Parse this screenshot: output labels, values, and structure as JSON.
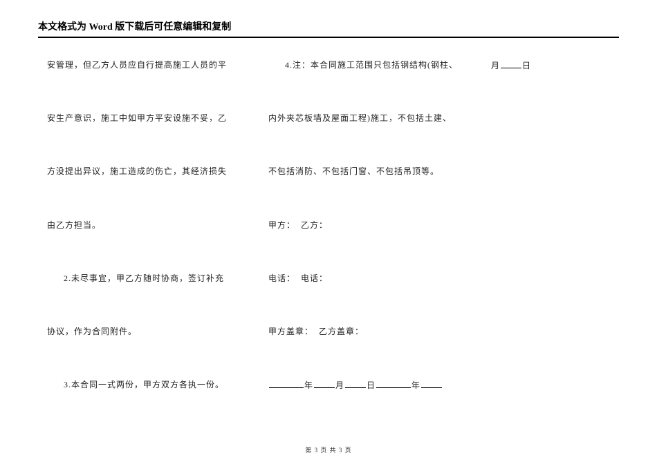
{
  "header": "本文格式为 Word 版下载后可任意编辑和复制",
  "col1": {
    "p1": "安管理，但乙方人员应自行提高施工人员的平",
    "p2": "安生产意识，施工中如甲方平安设施不妥，乙",
    "p3": "方没提出异议，施工造成的伤亡，其经济损失",
    "p4": "由乙方担当。",
    "p5": "2.未尽事宜，甲乙方随时协商，签订补充",
    "p6": "协议，作为合同附件。",
    "p7": "3.本合同一式两份，甲方双方各执一份。"
  },
  "col2": {
    "p1": "4.注：本合同施工范围只包括钢结构(钢柱、",
    "p2": "内外夹芯板墙及屋面工程)施工，不包括土建、",
    "p3": "不包括消防、不包括门窗、不包括吊顶等。",
    "p4a": "甲方：",
    "p4b": "乙方：",
    "p5a": "电话：",
    "p5b": "电话：",
    "p6a": "甲方盖章：",
    "p6b": "乙方盖章：",
    "p7_y1": "年",
    "p7_m1": "月",
    "p7_d1": "日",
    "p7_y2": "年"
  },
  "col3": {
    "p1_m": "月",
    "p1_d": "日"
  },
  "footer": "第 3 页 共 3 页"
}
